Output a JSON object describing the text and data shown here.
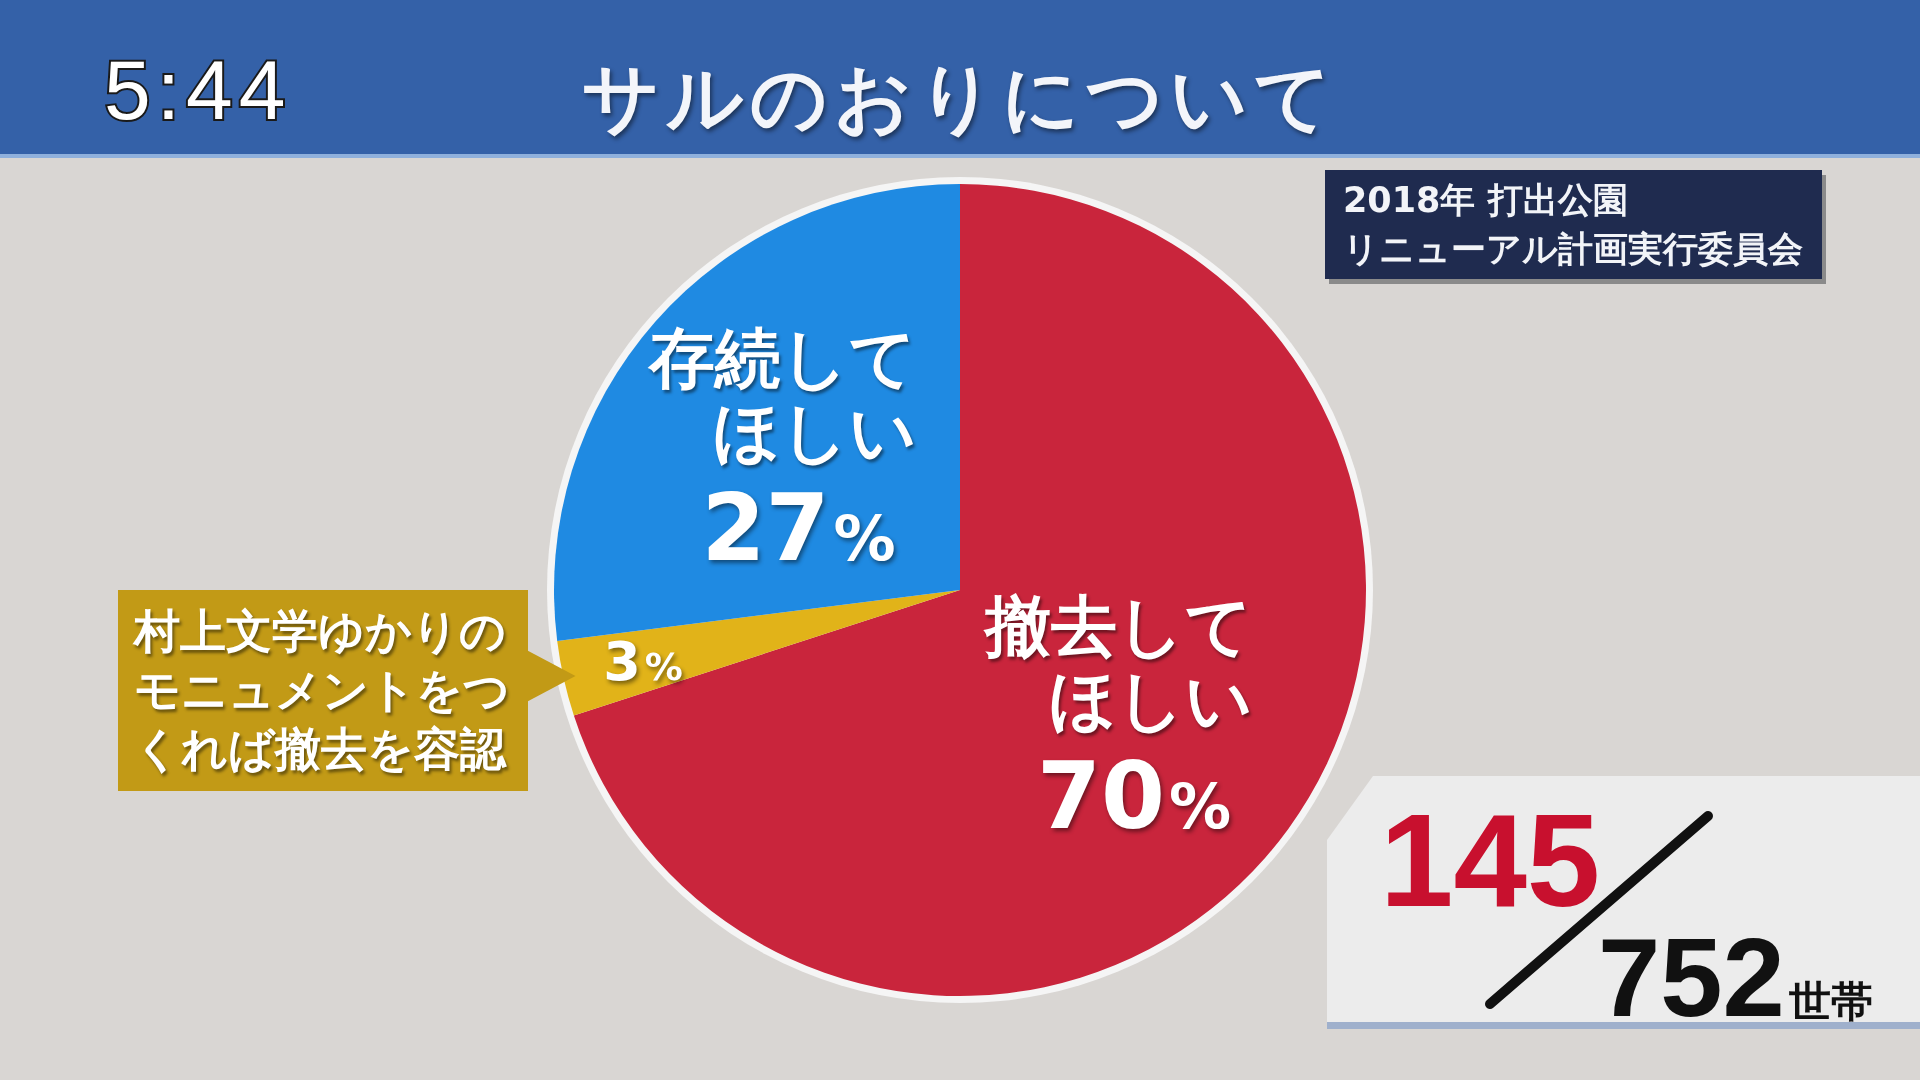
{
  "chart_data": {
    "type": "pie",
    "title": "サルのおりについて",
    "categories": [
      "撤去してほしい",
      "村上文学ゆかりのモニュメントをつくれば撤去を容認",
      "存続してほしい"
    ],
    "values": [
      70,
      3,
      27
    ],
    "colors": [
      "#c9253c",
      "#e1b319",
      "#1f8ae2"
    ],
    "value_labels": [
      "70%",
      "3%",
      "27%"
    ],
    "annotations": [
      "5:44",
      "2018年 打出公園",
      "リニューアル計画実行委員会",
      "145",
      "752世帯"
    ]
  }
}
